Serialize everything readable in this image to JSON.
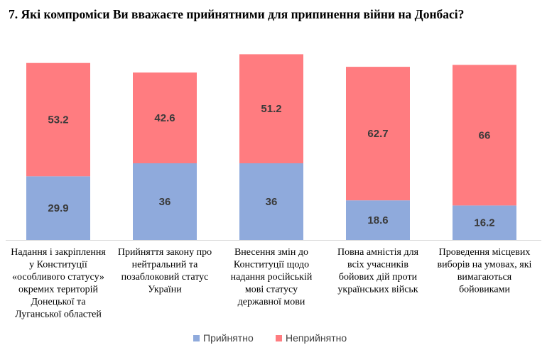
{
  "chart_data": {
    "type": "bar",
    "stacked": true,
    "title": "7.  Які компроміси Ви вважаєте прийнятними для припинення війни на Донбасі?",
    "categories": [
      [
        "Надання і закріплення",
        "у Конституції",
        "«особливого статусу»",
        "окремих територій",
        "Донецької та",
        "Луганської областей"
      ],
      [
        "Прийняття закону про",
        "нейтральний та",
        "позаблоковий статус",
        "України"
      ],
      [
        "Внесення змін до",
        "Конституції щодо",
        "надання російській",
        "мові статусу",
        "державної мови"
      ],
      [
        "Повна амністія для",
        "всіх учасників",
        "бойових дій проти",
        "українських військ"
      ],
      [
        "Проведення місцевих",
        "виборів на умовах, які",
        "вимагаються",
        "бойовиками"
      ]
    ],
    "series": [
      {
        "name": "Прийнятно",
        "color": "#8faadc",
        "values": [
          29.9,
          36,
          36,
          18.6,
          16.2
        ],
        "labels": [
          "29.9",
          "36",
          "36",
          "18.6",
          "16.2"
        ]
      },
      {
        "name": "Неприйнятно",
        "color": "#ff7c80",
        "values": [
          53.2,
          42.6,
          51.2,
          62.7,
          66
        ],
        "labels": [
          "53.2",
          "42.6",
          "51.2",
          "62.7",
          "66"
        ]
      }
    ],
    "ylim": [
      0,
      100
    ],
    "grid": false,
    "legend": "bottom"
  }
}
